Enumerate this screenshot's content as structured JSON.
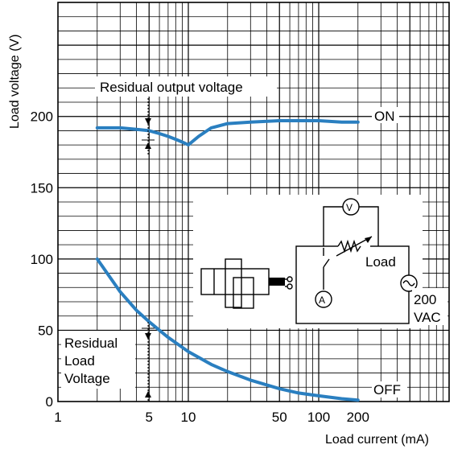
{
  "chart_data": {
    "type": "line",
    "xlabel": "Load current (mA)",
    "ylabel": "Load voltage (V)",
    "xscale": "log",
    "xlim": [
      1,
      1000
    ],
    "ylim": [
      0,
      280
    ],
    "x_ticks": [
      1,
      5,
      10,
      50,
      100,
      200
    ],
    "x_tick_labels": [
      "1",
      "5",
      "10",
      "50",
      "100",
      "200"
    ],
    "y_ticks": [
      0,
      50,
      100,
      150,
      200
    ],
    "y_tick_labels": [
      "0",
      "50",
      "100",
      "150",
      "200"
    ],
    "grid": true,
    "colors": {
      "curve": "#2a7fc0"
    },
    "series": [
      {
        "name": "ON",
        "x": [
          2,
          3,
          4,
          5,
          6,
          7,
          8,
          9,
          10,
          12,
          15,
          20,
          30,
          50,
          70,
          100,
          150,
          200
        ],
        "y": [
          192,
          192,
          191,
          190,
          188,
          186,
          184,
          182,
          180,
          186,
          192,
          195,
          196,
          197,
          197,
          197,
          196,
          196
        ]
      },
      {
        "name": "OFF",
        "x": [
          2,
          3,
          4,
          5,
          7,
          10,
          15,
          20,
          30,
          50,
          70,
          100,
          150,
          200
        ],
        "y": [
          100,
          77,
          64,
          56,
          45,
          35,
          26,
          21,
          15,
          9,
          6,
          4,
          2,
          1
        ]
      }
    ],
    "annotations": {
      "residual_output": "Residual output voltage",
      "residual_load": [
        "Residual",
        "Load",
        "Voltage"
      ],
      "load": "Load",
      "supply": [
        "200",
        "VAC"
      ]
    }
  }
}
